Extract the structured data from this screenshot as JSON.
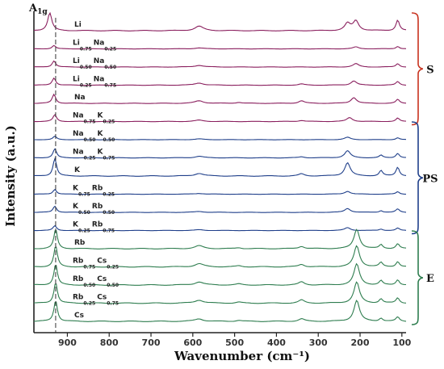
{
  "chart_data": {
    "type": "line",
    "xlabel": "Wavenumber (cm⁻¹)",
    "ylabel": "Intensity (a.u.)",
    "x_reversed": true,
    "xlim": [
      980,
      90
    ],
    "x_ticks": [
      900,
      800,
      700,
      600,
      500,
      400,
      300,
      200,
      100
    ],
    "y_ticks": "none",
    "grid": false,
    "annotation": {
      "text": "A",
      "subscript": "1g",
      "line_x": 928,
      "style": "dashed"
    },
    "series": [
      {
        "name": "Li",
        "parts": [
          {
            "t": "Li"
          }
        ],
        "group": "S",
        "color": "#8a1f5e",
        "peaks": [
          [
            942,
            1.0,
            6
          ],
          [
            585,
            0.25,
            12
          ],
          [
            210,
            0.55,
            8
          ],
          [
            230,
            0.4,
            8
          ],
          [
            110,
            0.6,
            5
          ]
        ]
      },
      {
        "name": "Li0.75Na0.25",
        "parts": [
          {
            "t": "Li"
          },
          {
            "s": "0.75"
          },
          {
            "t": "Na"
          },
          {
            "s": "0.25"
          }
        ],
        "group": "S",
        "color": "#8a1f5e",
        "peaks": [
          [
            932,
            0.35,
            5
          ],
          [
            585,
            0.1,
            12
          ],
          [
            210,
            0.2,
            8
          ],
          [
            110,
            0.25,
            5
          ]
        ]
      },
      {
        "name": "Li0.50Na0.50",
        "parts": [
          {
            "t": "Li"
          },
          {
            "s": "0.50"
          },
          {
            "t": "Na"
          },
          {
            "s": "0.50"
          }
        ],
        "group": "S",
        "color": "#8a1f5e",
        "peaks": [
          [
            932,
            0.55,
            5
          ],
          [
            585,
            0.15,
            12
          ],
          [
            210,
            0.3,
            8
          ],
          [
            110,
            0.3,
            5
          ]
        ]
      },
      {
        "name": "Li0.25Na0.75",
        "parts": [
          {
            "t": "Li"
          },
          {
            "s": "0.25"
          },
          {
            "t": "Na"
          },
          {
            "s": "0.75"
          }
        ],
        "group": "S",
        "color": "#8a1f5e",
        "peaks": [
          [
            932,
            0.6,
            5
          ],
          [
            585,
            0.18,
            12
          ],
          [
            340,
            0.1,
            8
          ],
          [
            215,
            0.35,
            8
          ],
          [
            110,
            0.3,
            5
          ]
        ]
      },
      {
        "name": "Na",
        "parts": [
          {
            "t": "Na"
          }
        ],
        "group": "S",
        "color": "#8a1f5e",
        "peaks": [
          [
            932,
            0.7,
            5
          ],
          [
            585,
            0.2,
            12
          ],
          [
            490,
            0.08,
            8
          ],
          [
            340,
            0.2,
            8
          ],
          [
            215,
            0.45,
            8
          ],
          [
            110,
            0.3,
            5
          ]
        ]
      },
      {
        "name": "Na0.75K0.25",
        "parts": [
          {
            "t": "Na"
          },
          {
            "s": "0.75"
          },
          {
            "t": "K"
          },
          {
            "s": "0.25"
          }
        ],
        "group": "S",
        "color": "#8a1f5e",
        "peaks": [
          [
            930,
            0.6,
            5
          ],
          [
            585,
            0.12,
            12
          ],
          [
            340,
            0.1,
            8
          ],
          [
            225,
            0.35,
            8
          ],
          [
            110,
            0.3,
            5
          ]
        ]
      },
      {
        "name": "Na0.50K0.50",
        "parts": [
          {
            "t": "Na"
          },
          {
            "s": "0.50"
          },
          {
            "t": "K"
          },
          {
            "s": "0.50"
          }
        ],
        "group": "PS",
        "color": "#1f3f8a",
        "peaks": [
          [
            930,
            0.35,
            5
          ],
          [
            585,
            0.08,
            12
          ],
          [
            230,
            0.25,
            8
          ],
          [
            110,
            0.2,
            5
          ]
        ]
      },
      {
        "name": "Na0.25K0.75",
        "parts": [
          {
            "t": "Na"
          },
          {
            "s": "0.25"
          },
          {
            "t": "K"
          },
          {
            "s": "0.75"
          }
        ],
        "group": "PS",
        "color": "#1f3f8a",
        "peaks": [
          [
            930,
            0.7,
            5
          ],
          [
            585,
            0.12,
            12
          ],
          [
            340,
            0.08,
            8
          ],
          [
            230,
            0.55,
            8
          ],
          [
            150,
            0.2,
            5
          ],
          [
            110,
            0.35,
            5
          ]
        ]
      },
      {
        "name": "K",
        "parts": [
          {
            "t": "K"
          }
        ],
        "group": "PS",
        "color": "#1f3f8a",
        "peaks": [
          [
            930,
            1.0,
            5
          ],
          [
            585,
            0.15,
            12
          ],
          [
            340,
            0.12,
            8
          ],
          [
            230,
            0.75,
            8
          ],
          [
            150,
            0.3,
            5
          ],
          [
            110,
            0.5,
            5
          ]
        ]
      },
      {
        "name": "K0.75Rb0.25",
        "parts": [
          {
            "t": "K"
          },
          {
            "s": "0.75"
          },
          {
            "t": "Rb"
          },
          {
            "s": "0.25"
          }
        ],
        "group": "PS",
        "color": "#1f3f8a",
        "peaks": [
          [
            930,
            0.5,
            5
          ],
          [
            585,
            0.08,
            12
          ],
          [
            230,
            0.3,
            8
          ],
          [
            110,
            0.25,
            5
          ]
        ]
      },
      {
        "name": "K0.50Rb0.50",
        "parts": [
          {
            "t": "K"
          },
          {
            "s": "0.50"
          },
          {
            "t": "Rb"
          },
          {
            "s": "0.50"
          }
        ],
        "group": "PS",
        "color": "#1f3f8a",
        "peaks": [
          [
            930,
            0.55,
            5
          ],
          [
            585,
            0.08,
            12
          ],
          [
            230,
            0.35,
            8
          ],
          [
            150,
            0.15,
            5
          ],
          [
            110,
            0.3,
            5
          ]
        ]
      },
      {
        "name": "K0.25Rb0.75",
        "parts": [
          {
            "t": "K"
          },
          {
            "s": "0.25"
          },
          {
            "t": "Rb"
          },
          {
            "s": "0.75"
          }
        ],
        "group": "PS",
        "color": "#1f3f8a",
        "peaks": [
          [
            930,
            0.5,
            5
          ],
          [
            585,
            0.08,
            12
          ],
          [
            230,
            0.3,
            8
          ],
          [
            150,
            0.15,
            5
          ],
          [
            110,
            0.25,
            5
          ]
        ]
      },
      {
        "name": "Rb",
        "parts": [
          {
            "t": "Rb"
          }
        ],
        "group": "E",
        "color": "#2e7d4f",
        "peaks": [
          [
            928,
            1.0,
            5
          ],
          [
            585,
            0.15,
            12
          ],
          [
            490,
            0.05,
            8
          ],
          [
            340,
            0.12,
            8
          ],
          [
            208,
            1.0,
            8
          ],
          [
            150,
            0.2,
            5
          ],
          [
            110,
            0.25,
            5
          ]
        ]
      },
      {
        "name": "Rb0.75Cs0.25",
        "parts": [
          {
            "t": "Rb"
          },
          {
            "s": "0.75"
          },
          {
            "t": "Cs"
          },
          {
            "s": "0.25"
          }
        ],
        "group": "E",
        "color": "#2e7d4f",
        "peaks": [
          [
            928,
            1.0,
            5
          ],
          [
            585,
            0.15,
            12
          ],
          [
            490,
            0.05,
            8
          ],
          [
            340,
            0.12,
            8
          ],
          [
            208,
            1.0,
            8
          ],
          [
            150,
            0.2,
            5
          ],
          [
            110,
            0.25,
            5
          ]
        ]
      },
      {
        "name": "Rb0.50Cs0.50",
        "parts": [
          {
            "t": "Rb"
          },
          {
            "s": "0.50"
          },
          {
            "t": "Cs"
          },
          {
            "s": "0.50"
          }
        ],
        "group": "E",
        "color": "#2e7d4f",
        "peaks": [
          [
            928,
            1.0,
            5
          ],
          [
            585,
            0.15,
            12
          ],
          [
            490,
            0.05,
            8
          ],
          [
            340,
            0.15,
            8
          ],
          [
            208,
            1.0,
            8
          ],
          [
            150,
            0.2,
            5
          ],
          [
            110,
            0.25,
            5
          ]
        ]
      },
      {
        "name": "Rb0.25Cs0.75",
        "parts": [
          {
            "t": "Rb"
          },
          {
            "s": "0.25"
          },
          {
            "t": "Cs"
          },
          {
            "s": "0.75"
          }
        ],
        "group": "E",
        "color": "#2e7d4f",
        "peaks": [
          [
            928,
            1.0,
            5
          ],
          [
            585,
            0.15,
            12
          ],
          [
            490,
            0.05,
            8
          ],
          [
            340,
            0.15,
            8
          ],
          [
            208,
            1.0,
            8
          ],
          [
            150,
            0.2,
            5
          ],
          [
            110,
            0.25,
            5
          ]
        ]
      },
      {
        "name": "Cs",
        "parts": [
          {
            "t": "Cs"
          }
        ],
        "group": "E",
        "color": "#2e7d4f",
        "peaks": [
          [
            928,
            1.0,
            5
          ],
          [
            585,
            0.12,
            12
          ],
          [
            490,
            0.05,
            8
          ],
          [
            340,
            0.12,
            8
          ],
          [
            208,
            1.0,
            8
          ],
          [
            150,
            0.15,
            5
          ],
          [
            110,
            0.2,
            5
          ]
        ]
      }
    ],
    "groups": [
      {
        "label": "S",
        "color": "#c8321e"
      },
      {
        "label": "PS",
        "color": "#1f3f8a"
      },
      {
        "label": "E",
        "color": "#2e7d4f"
      }
    ]
  }
}
